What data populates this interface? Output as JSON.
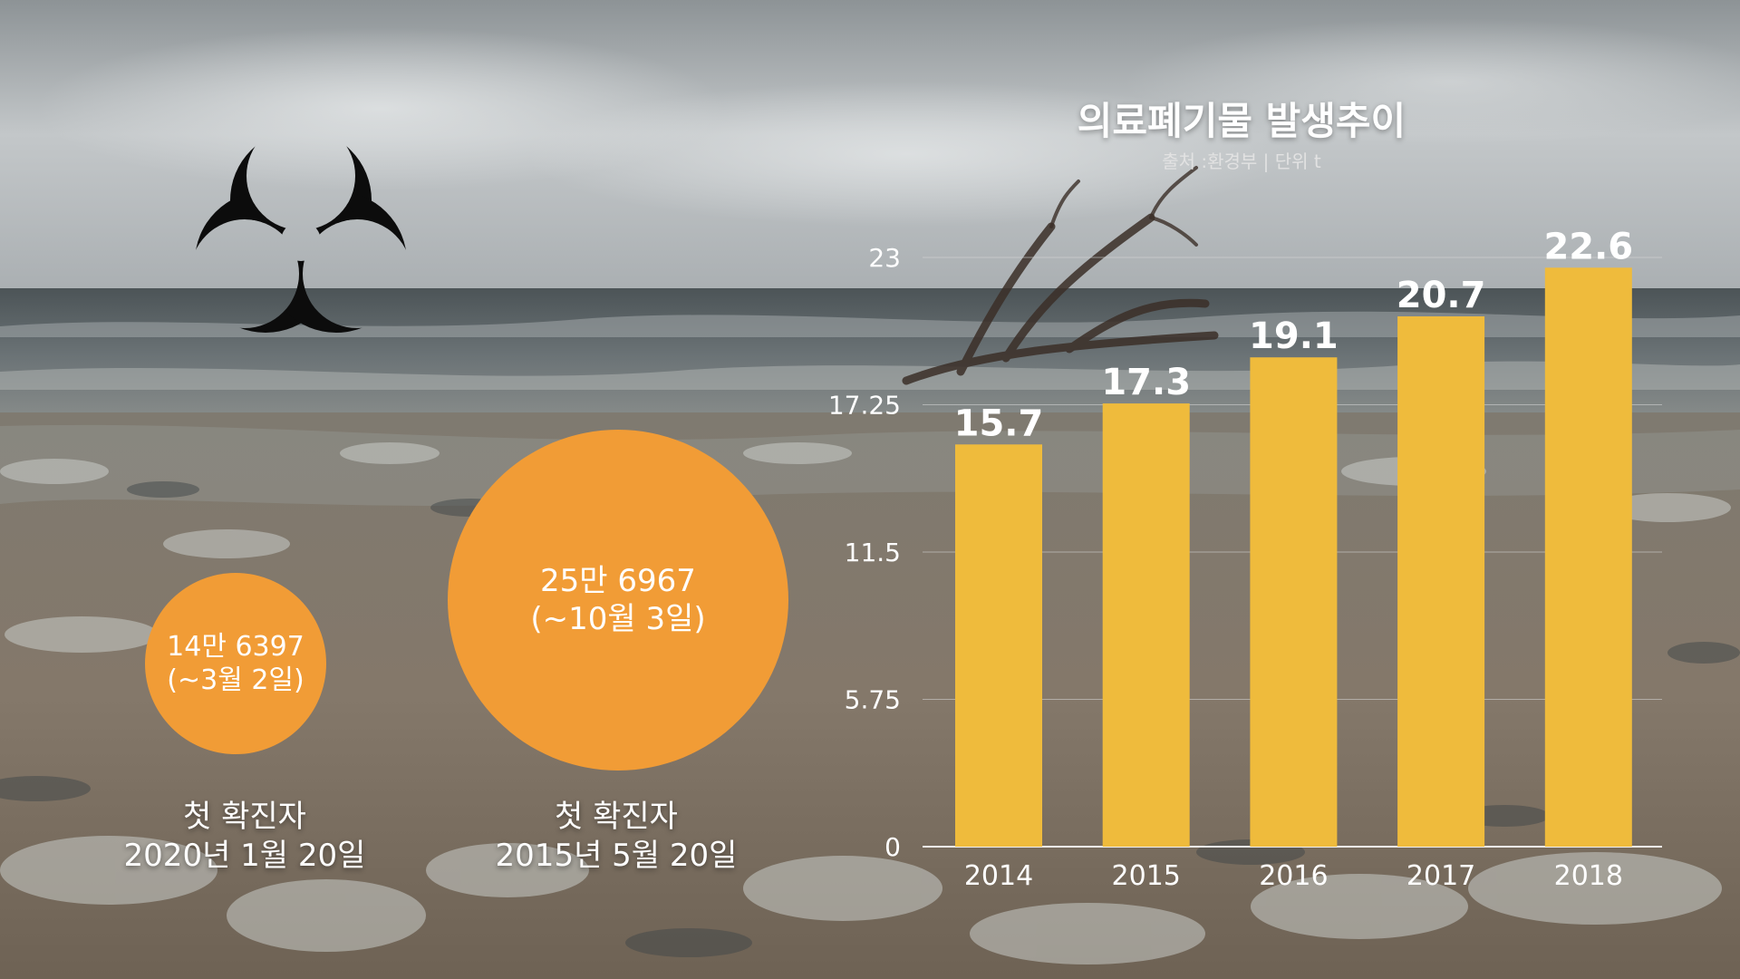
{
  "colors": {
    "bar": "#efbb3c",
    "bubble": "#f19c36",
    "symbol": "#0c0c0c",
    "sky": "#b6bbbe",
    "sea": "#5d6467",
    "sand": "#7d7264"
  },
  "icons": {
    "hazard": "biohazard-icon"
  },
  "cases": {
    "recent": {
      "count": "14만 6397",
      "period": "(~3월 2일)",
      "caption_line1": "첫 확진자",
      "caption_line2": "2020년 1월 20일"
    },
    "past": {
      "count": "25만 6967",
      "period": "(~10월 3일)",
      "caption_line1": "첫 확진자",
      "caption_line2": "2015년 5월 20일"
    },
    "recent_value": 146397,
    "past_value": 256967
  },
  "chart_data": {
    "type": "bar",
    "title": "의료폐기물 발생추이",
    "subtitle": "출처 :환경부  | 단위 t",
    "categories": [
      "2014",
      "2015",
      "2016",
      "2017",
      "2018"
    ],
    "values": [
      15.7,
      17.3,
      19.1,
      20.7,
      22.6
    ],
    "data_labels": [
      "15.7",
      "17.3",
      "19.1",
      "20.7",
      "22.6"
    ],
    "yticks": [
      0,
      5.75,
      11.5,
      17.25,
      23
    ],
    "ytick_labels": [
      "0",
      "5.75",
      "11.5",
      "17.25",
      "23"
    ],
    "ylim": [
      0,
      23
    ],
    "grid": true,
    "xlabel": "",
    "ylabel": ""
  }
}
